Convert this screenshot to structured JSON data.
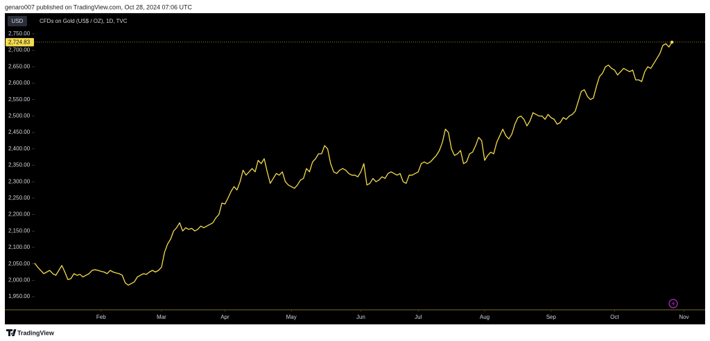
{
  "header": "genaro007 published on TradingView.com, Oct 28, 2024 07:06 UTC",
  "footer": "TradingView",
  "chart_data": {
    "type": "line",
    "currency_button": "USD",
    "subtitle": "CFDs on Gold (US$ / OZ), 1D, TVC",
    "series": [
      {
        "name": "CFDs on Gold (US$ / OZ), 1D, TVC",
        "color": "#f5dc4c",
        "values": [
          2052,
          2040,
          2030,
          2020,
          2025,
          2030,
          2020,
          2015,
          2030,
          2045,
          2025,
          2002,
          2005,
          2020,
          2015,
          2018,
          2010,
          2015,
          2020,
          2030,
          2032,
          2030,
          2027,
          2025,
          2020,
          2030,
          2025,
          2022,
          2020,
          2015,
          1992,
          1985,
          1990,
          1995,
          2010,
          2015,
          2020,
          2018,
          2025,
          2030,
          2025,
          2030,
          2040,
          2085,
          2110,
          2125,
          2150,
          2160,
          2175,
          2150,
          2160,
          2155,
          2158,
          2150,
          2155,
          2165,
          2160,
          2165,
          2170,
          2175,
          2190,
          2200,
          2235,
          2232,
          2250,
          2270,
          2285,
          2275,
          2300,
          2335,
          2320,
          2330,
          2340,
          2330,
          2365,
          2355,
          2370,
          2330,
          2295,
          2310,
          2325,
          2320,
          2330,
          2300,
          2290,
          2285,
          2280,
          2290,
          2305,
          2310,
          2340,
          2330,
          2360,
          2370,
          2385,
          2385,
          2410,
          2400,
          2355,
          2330,
          2325,
          2335,
          2340,
          2335,
          2325,
          2320,
          2320,
          2315,
          2330,
          2355,
          2290,
          2295,
          2310,
          2300,
          2305,
          2315,
          2310,
          2325,
          2330,
          2325,
          2320,
          2325,
          2300,
          2295,
          2320,
          2320,
          2325,
          2330,
          2355,
          2360,
          2355,
          2360,
          2370,
          2380,
          2395,
          2420,
          2460,
          2450,
          2400,
          2380,
          2385,
          2395,
          2355,
          2360,
          2385,
          2390,
          2410,
          2435,
          2425,
          2365,
          2380,
          2390,
          2385,
          2420,
          2440,
          2460,
          2440,
          2430,
          2445,
          2475,
          2495,
          2500,
          2490,
          2470,
          2485,
          2510,
          2505,
          2500,
          2500,
          2490,
          2505,
          2495,
          2490,
          2475,
          2480,
          2495,
          2490,
          2500,
          2505,
          2515,
          2545,
          2575,
          2580,
          2560,
          2550,
          2555,
          2590,
          2620,
          2630,
          2650,
          2655,
          2645,
          2640,
          2625,
          2635,
          2645,
          2640,
          2635,
          2640,
          2610,
          2610,
          2605,
          2635,
          2650,
          2645,
          2660,
          2675,
          2690,
          2715,
          2720,
          2710,
          2724.83
        ]
      }
    ],
    "last_price": {
      "value": 2724.83,
      "label": "2,724.83"
    },
    "xlim": [
      0,
      222
    ],
    "xticks": [
      {
        "value": 22,
        "label": "Feb"
      },
      {
        "value": 42,
        "label": "Mar"
      },
      {
        "value": 63,
        "label": "Apr"
      },
      {
        "value": 85,
        "label": "May"
      },
      {
        "value": 108,
        "label": "Jun"
      },
      {
        "value": 127,
        "label": "Jul"
      },
      {
        "value": 149,
        "label": "Aug"
      },
      {
        "value": 171,
        "label": "Sep"
      },
      {
        "value": 192,
        "label": "Oct"
      },
      {
        "value": 215,
        "label": "Nov"
      }
    ],
    "ylim": [
      1910,
      2811
    ],
    "yticks": [
      {
        "value": 1950,
        "label": "1,950.00"
      },
      {
        "value": 2000,
        "label": "2,000.00"
      },
      {
        "value": 2050,
        "label": "2,050.00"
      },
      {
        "value": 2100,
        "label": "2,100.00"
      },
      {
        "value": 2150,
        "label": "2,150.00"
      },
      {
        "value": 2200,
        "label": "2,200.00"
      },
      {
        "value": 2250,
        "label": "2,250.00"
      },
      {
        "value": 2300,
        "label": "2,300.00"
      },
      {
        "value": 2350,
        "label": "2,350.00"
      },
      {
        "value": 2400,
        "label": "2,400.00"
      },
      {
        "value": 2450,
        "label": "2,450.00"
      },
      {
        "value": 2500,
        "label": "2,500.00"
      },
      {
        "value": 2550,
        "label": "2,550.00"
      },
      {
        "value": 2600,
        "label": "2,600.00"
      },
      {
        "value": 2650,
        "label": "2,650.00"
      },
      {
        "value": 2700,
        "label": "2,700.00"
      },
      {
        "value": 2750,
        "label": "2,750.00"
      }
    ],
    "grid": false
  }
}
